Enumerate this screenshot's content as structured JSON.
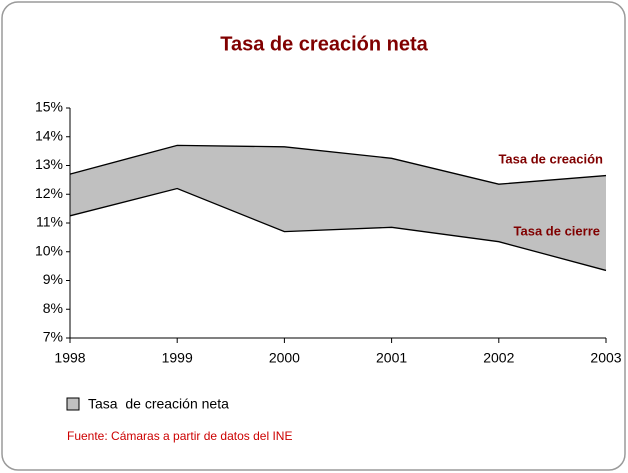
{
  "chart_data": {
    "type": "band",
    "title": "Tasa de creación neta",
    "categories": [
      "1998",
      "1999",
      "2000",
      "2001",
      "2002",
      "2003"
    ],
    "series": [
      {
        "name": "Tasa de creación",
        "color": "#000000",
        "values": [
          12.7,
          13.7,
          13.65,
          13.25,
          12.35,
          12.65
        ]
      },
      {
        "name": "Tasa de cierre",
        "color": "#000000",
        "values": [
          11.25,
          12.2,
          10.7,
          10.85,
          10.35,
          9.35
        ]
      }
    ],
    "band": {
      "name": "Tasa  de creación neta",
      "color": "#c0c0c0"
    },
    "ylim": [
      7,
      15
    ],
    "yticks": [
      {
        "value": 7,
        "label": "7%"
      },
      {
        "value": 8,
        "label": "8%"
      },
      {
        "value": 9,
        "label": "9%"
      },
      {
        "value": 10,
        "label": "10%"
      },
      {
        "value": 11,
        "label": "11%"
      },
      {
        "value": 12,
        "label": "12%"
      },
      {
        "value": 13,
        "label": "13%"
      },
      {
        "value": 14,
        "label": "14%"
      },
      {
        "value": 15,
        "label": "15%"
      }
    ],
    "grid": false,
    "source": "Fuente: Cámaras a partir de datos del INE"
  }
}
